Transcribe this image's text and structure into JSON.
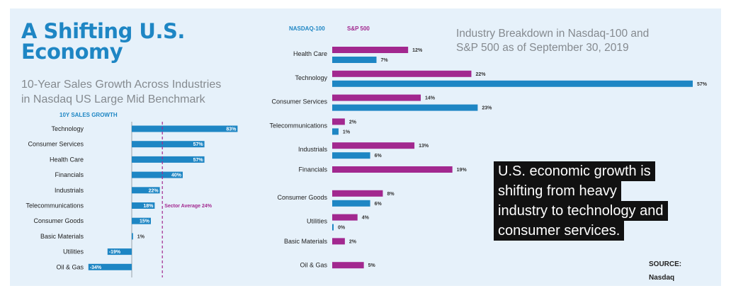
{
  "left_panel": {
    "headline_line1": "A Shifting U.S.",
    "headline_line2": "Economy",
    "subtitle_line1": "10-Year Sales Growth Across Industries",
    "subtitle_line2": "in Nasdaq US Large Mid Benchmark",
    "axis_title": "10Y SALES GROWTH",
    "sector_average_label": "Sector Average 24%"
  },
  "right_panel": {
    "title_line1": "Industry Breakdown in Nasdaq-100 and",
    "title_line2": "S&P 500 as of September 30, 2019",
    "legend": {
      "nasdaq": "NASDAQ-100",
      "sp500": "S&P 500"
    }
  },
  "callout": {
    "line1": "U.S. economic growth is",
    "line2": "shifting from heavy",
    "line3": "industry to technology and",
    "line4": "consumer services."
  },
  "source": {
    "label": "SOURCE:",
    "name": "Nasdaq"
  },
  "colors": {
    "nasdaq": "#1e86c4",
    "sp500": "#a2288f",
    "sector_line": "#a2288f",
    "headline": "#1e86c4",
    "panel_bg": "#e6f1fa"
  },
  "chart_data": [
    {
      "type": "bar",
      "orientation": "horizontal",
      "title": "10-Year Sales Growth Across Industries in Nasdaq US Large Mid Benchmark",
      "xlabel": "10Y SALES GROWTH",
      "unit": "%",
      "categories": [
        "Technology",
        "Consumer Services",
        "Health Care",
        "Financials",
        "Industrials",
        "Telecommunications",
        "Consumer Goods",
        "Basic Materials",
        "Utilities",
        "Oil & Gas"
      ],
      "values": [
        83,
        57,
        57,
        40,
        22,
        18,
        15,
        1,
        -19,
        -34
      ],
      "labels": [
        "83%",
        "57%",
        "57%",
        "40%",
        "22%",
        "18%",
        "15%",
        "1%",
        "-19%",
        "-34%"
      ],
      "reference_line": {
        "value": 24,
        "label": "Sector Average 24%"
      },
      "xlim": [
        -34,
        83
      ]
    },
    {
      "type": "bar",
      "orientation": "horizontal",
      "title": "Industry Breakdown in Nasdaq-100 and S&P 500 as of September 30, 2019",
      "unit": "%",
      "categories": [
        "Health Care",
        "Technology",
        "Consumer Services",
        "Telecommunications",
        "Industrials",
        "Financials",
        "Consumer Goods",
        "Utilities",
        "Basic Materials",
        "Oil & Gas"
      ],
      "series": [
        {
          "name": "S&P 500",
          "values": [
            12,
            22,
            14,
            2,
            13,
            19,
            8,
            4,
            2,
            5
          ],
          "labels": [
            "12%",
            "22%",
            "14%",
            "2%",
            "13%",
            "19%",
            "8%",
            "4%",
            "2%",
            "5%"
          ]
        },
        {
          "name": "NASDAQ-100",
          "values": [
            7,
            57,
            23,
            1,
            6,
            null,
            6,
            0,
            null,
            null
          ],
          "labels": [
            "7%",
            "57%",
            "23%",
            "1%",
            "6%",
            null,
            "6%",
            "0%",
            null,
            null
          ]
        }
      ],
      "legend": "top-left",
      "xlim": [
        0,
        57
      ]
    }
  ]
}
